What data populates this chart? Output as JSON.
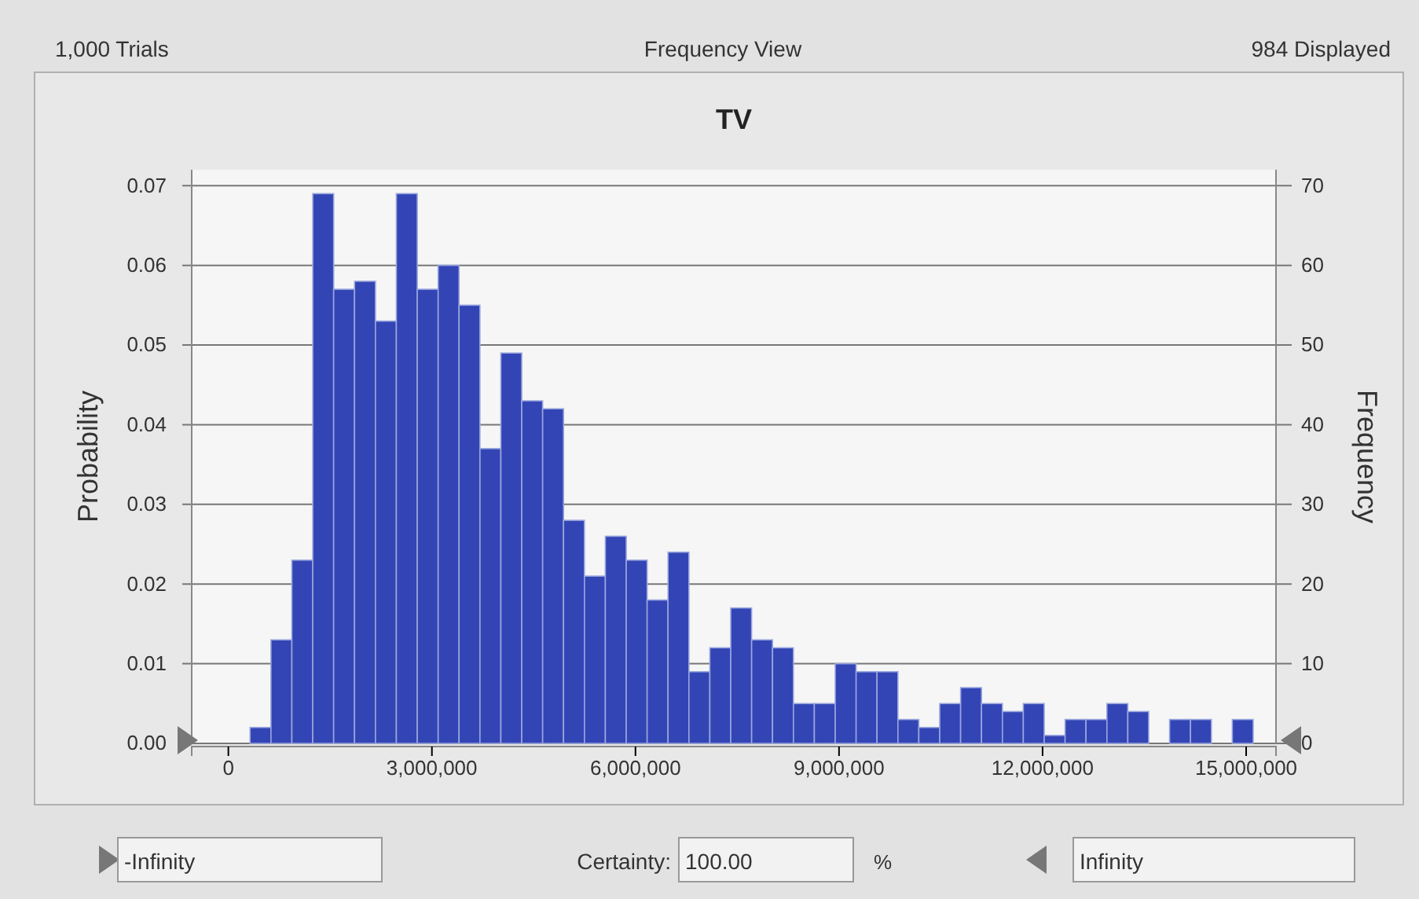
{
  "chart_data": {
    "type": "histogram",
    "title": "TV",
    "ylabel": "Probability",
    "y2label": "Frequency",
    "annotations": [
      "1,000 Trials",
      "Frequency View",
      "984 Displayed",
      "Certainty:",
      "100.00",
      "%",
      "-Infinity",
      "Infinity"
    ],
    "bins": [
      320000,
      628000,
      936000,
      1244000,
      1552000,
      1860000,
      2168000,
      2476000,
      2784000,
      3092000,
      3400000,
      3708000,
      4016000,
      4324000,
      4632000,
      4940000,
      5248000,
      5556000,
      5864000,
      6172000,
      6480000,
      6788000,
      7096000,
      7404000,
      7712000,
      8020000,
      8328000,
      8636000,
      8944000,
      9252000,
      9560000,
      9868000,
      10176000,
      10484000,
      10792000,
      11100000,
      11408000,
      11716000,
      12024000,
      12332000,
      12640000,
      12948000,
      13256000,
      13564000,
      13872000,
      14180000,
      14488000,
      14796000,
      15104000
    ],
    "values": [
      0.002,
      0.013,
      0.023,
      0.069,
      0.057,
      0.058,
      0.053,
      0.069,
      0.057,
      0.06,
      0.055,
      0.037,
      0.049,
      0.043,
      0.042,
      0.028,
      0.021,
      0.026,
      0.023,
      0.018,
      0.024,
      0.009,
      0.012,
      0.017,
      0.013,
      0.012,
      0.005,
      0.005,
      0.01,
      0.009,
      0.009,
      0.003,
      0.002,
      0.005,
      0.007,
      0.005,
      0.004,
      0.005,
      0.001,
      0.003,
      0.003,
      0.005,
      0.004,
      0,
      0.003,
      0.003,
      0,
      0.003
    ],
    "color": "#3345b5",
    "xlim": [
      -540000,
      15440000
    ],
    "xticks": [
      {
        "value": 0,
        "label": "0"
      },
      {
        "value": 3000000,
        "label": "3,000,000"
      },
      {
        "value": 6000000,
        "label": "6,000,000"
      },
      {
        "value": 9000000,
        "label": "9,000,000"
      },
      {
        "value": 12000000,
        "label": "12,000,000"
      },
      {
        "value": 15000000,
        "label": "15,000,000"
      }
    ],
    "ylim": [
      0,
      0.072
    ],
    "yticks": [
      {
        "value": 0,
        "label": "0.00"
      },
      0.01,
      0.02,
      0.03,
      0.04,
      0.05,
      0.06,
      0.07
    ],
    "y2lim": [
      0,
      72
    ],
    "y2ticks": [
      0,
      10,
      20,
      30,
      40,
      50,
      60,
      70
    ],
    "grid": "y"
  }
}
